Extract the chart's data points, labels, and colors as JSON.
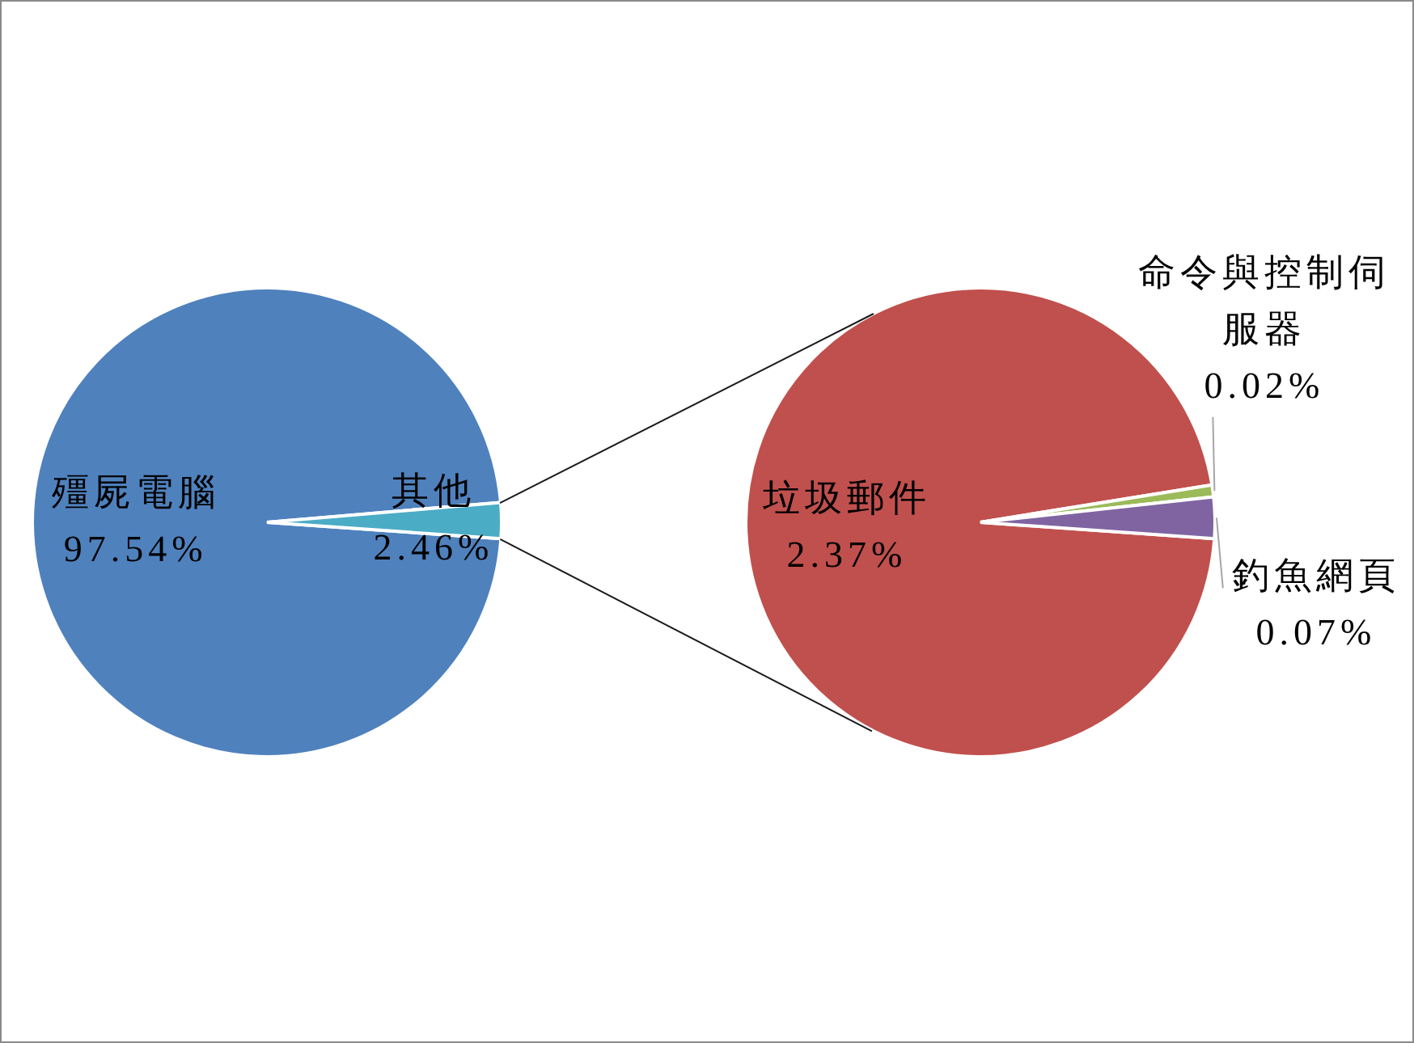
{
  "chart_data": [
    {
      "type": "pie",
      "categories": [
        "殭屍電腦",
        "其他"
      ],
      "values": [
        97.54,
        2.46
      ],
      "colors": [
        "#4f81bd",
        "#4bacc6"
      ],
      "value_labels": [
        "97.54%",
        "2.46%"
      ]
    },
    {
      "type": "pie",
      "categories": [
        "垃圾郵件",
        "命令與控制伺服器",
        "釣魚網頁"
      ],
      "values": [
        2.37,
        0.02,
        0.07
      ],
      "colors": [
        "#c0504d",
        "#9bbb59",
        "#8064a2"
      ],
      "value_labels": [
        "2.37%",
        "0.02%",
        "0.07%"
      ]
    }
  ]
}
